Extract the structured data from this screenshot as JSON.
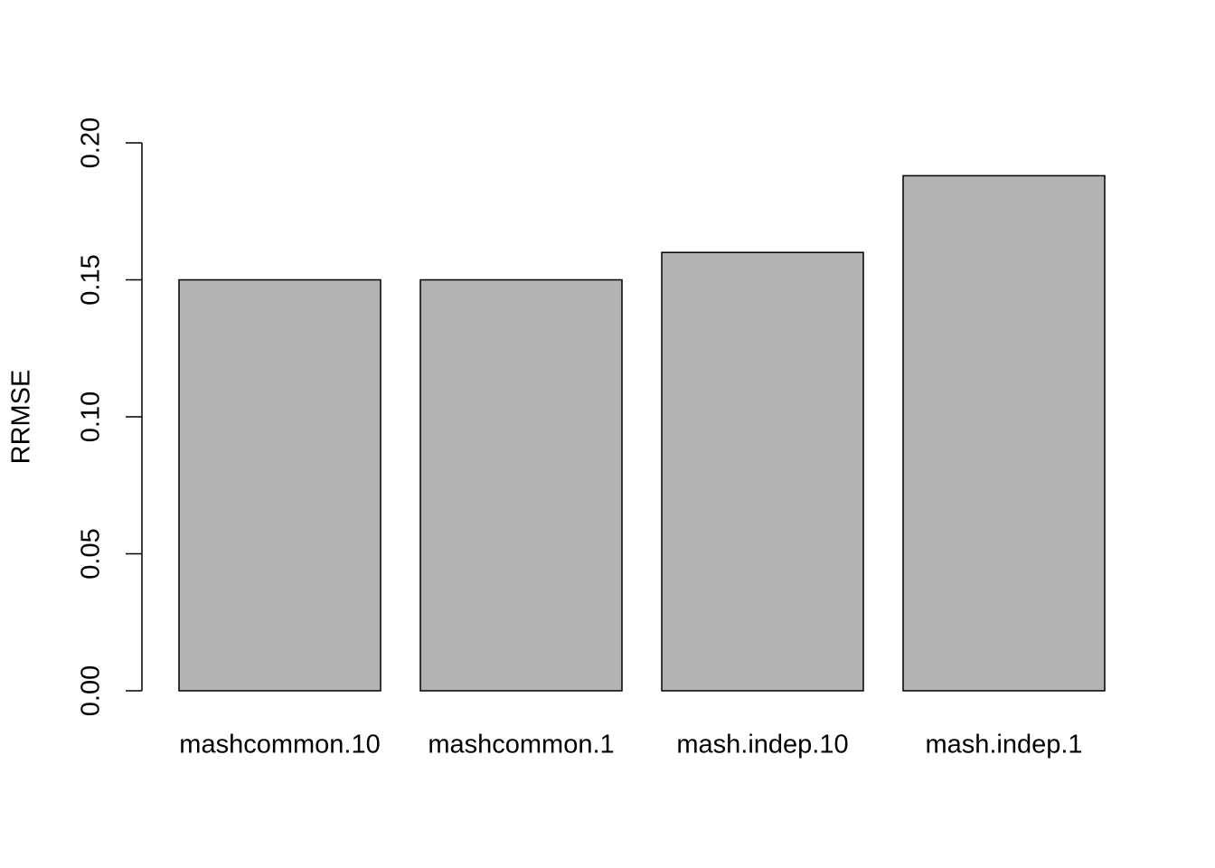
{
  "chart_data": {
    "type": "bar",
    "y_label": "RRMSE",
    "categories": [
      "mashcommon.10",
      "mashcommon.1",
      "mash.indep.10",
      "mash.indep.1"
    ],
    "values": [
      0.15,
      0.15,
      0.16,
      0.188
    ],
    "color": "#b3b3b3",
    "ylim": [
      0,
      0.2
    ],
    "yticks": [
      {
        "value": 0,
        "label": "0.00"
      },
      {
        "value": 0.05,
        "label": "0.05"
      },
      {
        "value": 0.1,
        "label": "0.10"
      },
      {
        "value": 0.15,
        "label": "0.15"
      },
      {
        "value": 0.2,
        "label": "0.20"
      }
    ],
    "grid": false
  }
}
